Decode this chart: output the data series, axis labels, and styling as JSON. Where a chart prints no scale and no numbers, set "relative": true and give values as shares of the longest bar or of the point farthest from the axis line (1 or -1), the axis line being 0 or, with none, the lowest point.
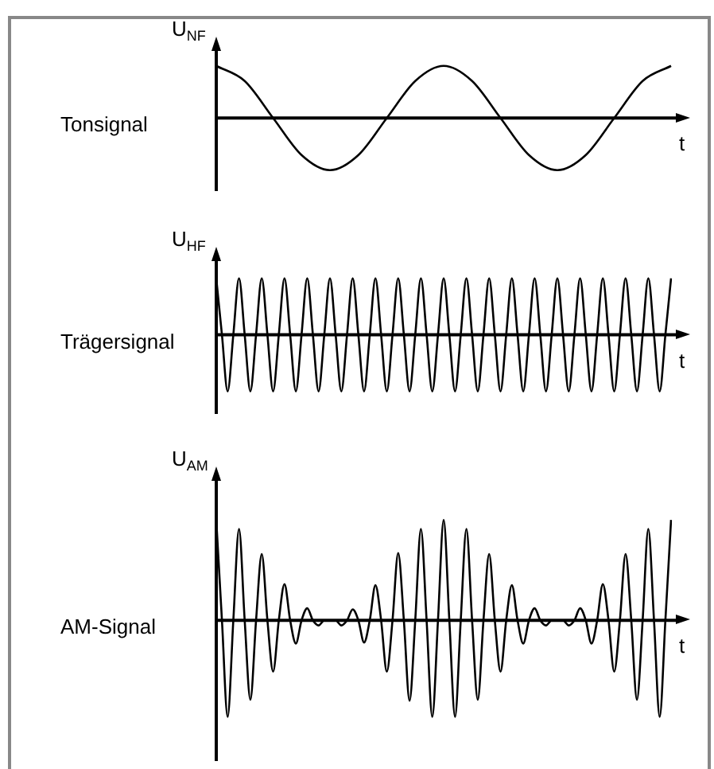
{
  "chart_data": [
    {
      "type": "line",
      "title": "Tonsignal",
      "ylabel": "U$_{NF}$",
      "xlabel": "t",
      "relative": true,
      "tick_labels": false,
      "marker": "none",
      "color": "#000000",
      "categories": [
        null,
        null,
        null,
        null,
        null,
        null,
        null,
        null,
        null,
        null,
        null,
        null,
        null,
        null,
        null,
        null,
        null
      ],
      "values": [
        1,
        0.71,
        0,
        -0.71,
        -1,
        -0.71,
        0,
        0.71,
        1,
        0.71,
        0,
        -0.71,
        -1,
        -0.71,
        0,
        0.71,
        1
      ]
    },
    {
      "type": "line",
      "title": "Trägersignal",
      "ylabel": "U$_{HF}$",
      "xlabel": "t",
      "relative": true,
      "tick_labels": false,
      "marker": "none",
      "color": "#000000",
      "categories": [
        null,
        null,
        null,
        null,
        null,
        null,
        null,
        null,
        null,
        null,
        null,
        null,
        null,
        null,
        null,
        null,
        null,
        null,
        null,
        null,
        null,
        null,
        null,
        null,
        null,
        null,
        null,
        null,
        null,
        null,
        null,
        null,
        null,
        null,
        null,
        null,
        null,
        null,
        null,
        null,
        null,
        null,
        null,
        null,
        null,
        null,
        null,
        null,
        null,
        null,
        null,
        null,
        null,
        null,
        null,
        null,
        null,
        null,
        null,
        null,
        null,
        null,
        null,
        null,
        null,
        null,
        null,
        null,
        null,
        null,
        null,
        null,
        null,
        null,
        null,
        null,
        null,
        null,
        null,
        null,
        null
      ],
      "values": [
        1,
        0,
        -1,
        0,
        1,
        0,
        -1,
        0,
        1,
        0,
        -1,
        0,
        1,
        0,
        -1,
        0,
        1,
        0,
        -1,
        0,
        1,
        0,
        -1,
        0,
        1,
        0,
        -1,
        0,
        1,
        0,
        -1,
        0,
        1,
        0,
        -1,
        0,
        1,
        0,
        -1,
        0,
        1,
        0,
        -1,
        0,
        1,
        0,
        -1,
        0,
        1,
        0,
        -1,
        0,
        1,
        0,
        -1,
        0,
        1,
        0,
        -1,
        0,
        1,
        0,
        -1,
        0,
        1,
        0,
        -1,
        0,
        1,
        0,
        -1,
        0,
        1,
        0,
        -1,
        0,
        1,
        0,
        -1,
        0,
        1
      ]
    },
    {
      "type": "line",
      "title": "AM-Signal",
      "ylabel": "U$_{AM}$",
      "xlabel": "t",
      "relative": true,
      "tick_labels": false,
      "marker": "none",
      "color": "#000000",
      "categories": [
        null,
        null,
        null,
        null,
        null,
        null,
        null,
        null,
        null,
        null,
        null,
        null,
        null,
        null,
        null,
        null,
        null,
        null,
        null,
        null,
        null,
        null,
        null,
        null,
        null,
        null,
        null,
        null,
        null,
        null,
        null,
        null,
        null,
        null,
        null,
        null,
        null,
        null,
        null,
        null,
        null,
        null,
        null,
        null,
        null,
        null,
        null,
        null,
        null,
        null,
        null,
        null,
        null,
        null,
        null,
        null,
        null,
        null,
        null,
        null,
        null,
        null,
        null,
        null,
        null,
        null,
        null,
        null,
        null,
        null,
        null,
        null,
        null,
        null,
        null,
        null,
        null,
        null,
        null,
        null,
        null
      ],
      "values": [
        1,
        0,
        -0.96,
        0,
        0.91,
        0,
        -0.79,
        0,
        0.66,
        0,
        -0.51,
        0,
        0.36,
        0,
        -0.23,
        0,
        0.12,
        0,
        -0.05,
        0,
        0,
        0,
        -0.05,
        0,
        0.11,
        0,
        -0.22,
        0,
        0.35,
        0,
        -0.51,
        0,
        0.67,
        0,
        -0.8,
        0,
        0.91,
        0,
        -0.96,
        0,
        1,
        0,
        -0.96,
        0,
        0.91,
        0,
        -0.79,
        0,
        0.66,
        0,
        -0.51,
        0,
        0.35,
        0,
        -0.23,
        0,
        0.12,
        0,
        -0.05,
        0,
        0,
        0,
        -0.05,
        0,
        0.12,
        0,
        -0.23,
        0,
        0.36,
        0,
        -0.51,
        0,
        0.66,
        0,
        -0.79,
        0,
        0.91,
        0,
        -0.96,
        0,
        1
      ]
    }
  ]
}
